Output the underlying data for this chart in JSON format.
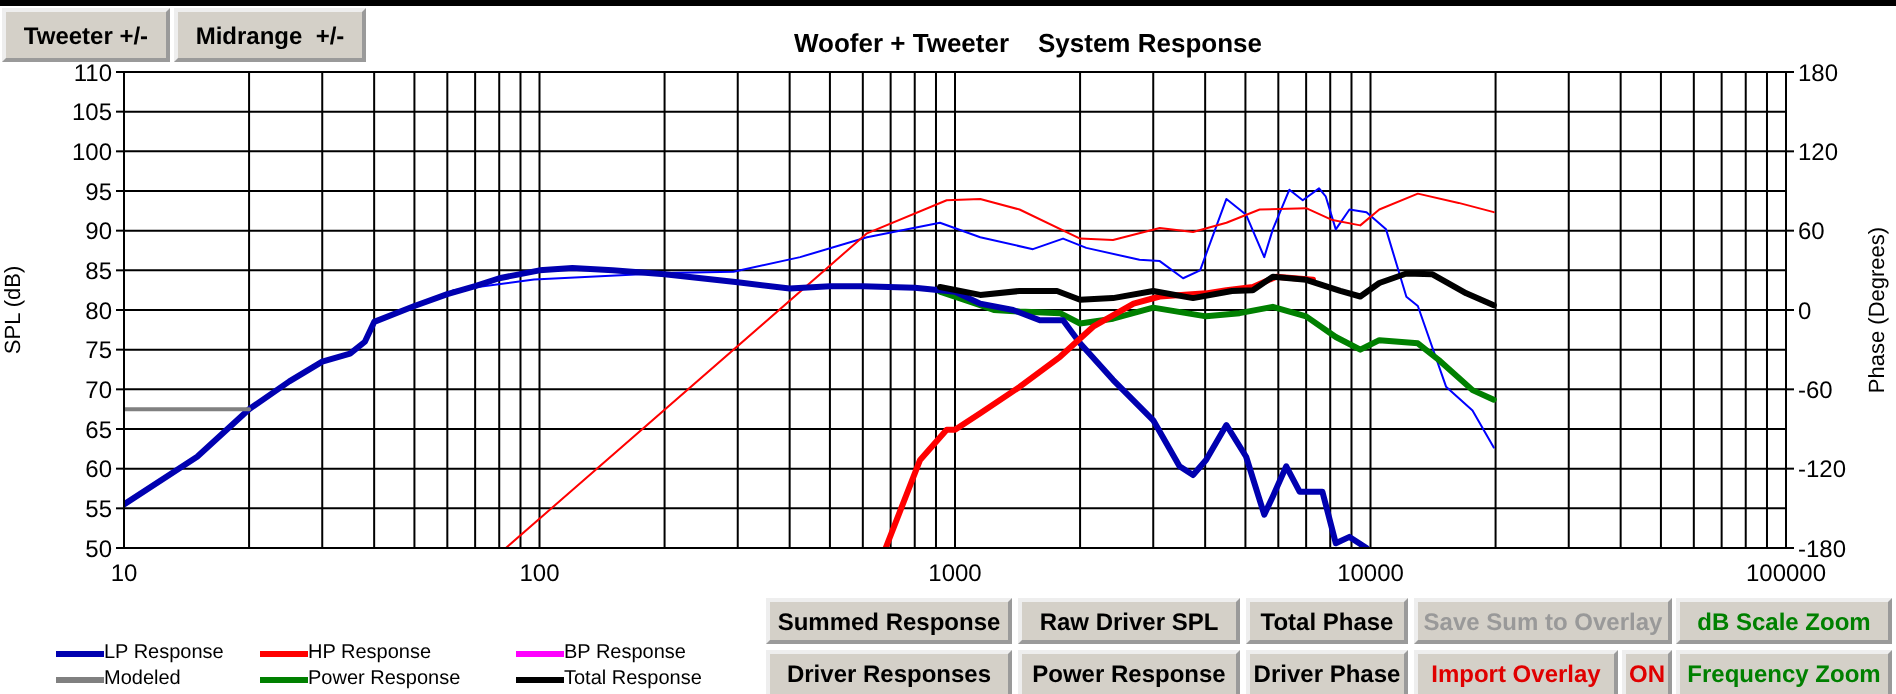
{
  "chart_data": {
    "type": "line",
    "title": "Woofer + Tweeter    System Response",
    "xlabel": null,
    "ylabel": "SPL (dB)",
    "y2label": "Phase (Degrees)",
    "log": "x",
    "grid": true,
    "legend": "bottom left",
    "marker": "none",
    "line_style": "solid",
    "xlim": [
      10,
      100000
    ],
    "xticks": [
      10,
      {
        "value": 20,
        "label": null
      },
      {
        "value": 30,
        "label": null
      },
      {
        "value": 40,
        "label": null
      },
      {
        "value": 50,
        "label": null
      },
      {
        "value": 60,
        "label": null
      },
      {
        "value": 70,
        "label": null
      },
      {
        "value": 80,
        "label": null
      },
      {
        "value": 90,
        "label": null
      },
      100,
      {
        "value": 200,
        "label": null
      },
      {
        "value": 300,
        "label": null
      },
      {
        "value": 400,
        "label": null
      },
      {
        "value": 500,
        "label": null
      },
      {
        "value": 600,
        "label": null
      },
      {
        "value": 700,
        "label": null
      },
      {
        "value": 800,
        "label": null
      },
      {
        "value": 900,
        "label": null
      },
      1000,
      {
        "value": 2000,
        "label": null
      },
      {
        "value": 3000,
        "label": null
      },
      {
        "value": 4000,
        "label": null
      },
      {
        "value": 5000,
        "label": null
      },
      {
        "value": 6000,
        "label": null
      },
      {
        "value": 7000,
        "label": null
      },
      {
        "value": 8000,
        "label": null
      },
      {
        "value": 9000,
        "label": null
      },
      10000,
      {
        "value": 20000,
        "label": null
      },
      {
        "value": 30000,
        "label": null
      },
      {
        "value": 40000,
        "label": null
      },
      {
        "value": 50000,
        "label": null
      },
      {
        "value": 60000,
        "label": null
      },
      {
        "value": 70000,
        "label": null
      },
      {
        "value": 80000,
        "label": null
      },
      {
        "value": 90000,
        "label": null
      },
      100000
    ],
    "ylim": [
      50,
      110
    ],
    "yticks": [
      50,
      55,
      60,
      65,
      70,
      75,
      80,
      85,
      90,
      95,
      100,
      105,
      110
    ],
    "y2lim": [
      -180,
      180
    ],
    "y2ticks": [
      -180,
      -120,
      -60,
      0,
      60,
      120,
      180
    ],
    "annotations": [
      "Tweeter +/-",
      "Midrange  +/-",
      "Summed Response",
      "Raw Driver SPL",
      "Total Phase",
      "Save Sum to Overlay",
      "dB Scale Zoom",
      "Driver Responses",
      "Power Response",
      "Driver Phase",
      "Import Overlay",
      "ON",
      "Frequency Zoom"
    ],
    "series": [
      {
        "name": "LP Response",
        "color": "#0000b0",
        "x": [
          10,
          15,
          20,
          25,
          30,
          35,
          38,
          40,
          50,
          60,
          70,
          80,
          100,
          120,
          150,
          200,
          300,
          400,
          500,
          600,
          800,
          1000,
          1150,
          1380,
          1600,
          1820,
          2000,
          2400,
          3000,
          3470,
          3740,
          4020,
          4500,
          5020,
          5550,
          5820,
          6270,
          6750,
          7660,
          8250,
          8900,
          9780
        ],
        "values": [
          55.5,
          61.5,
          67.5,
          71,
          73.5,
          74.5,
          76,
          78.5,
          80.5,
          82,
          83,
          84,
          85,
          85.3,
          85,
          84.5,
          83.5,
          82.7,
          83,
          83,
          82.8,
          82.3,
          80.8,
          80,
          78.7,
          78.7,
          75.8,
          71.2,
          66.1,
          60.3,
          59.2,
          61.1,
          65.5,
          61.5,
          54.2,
          56.5,
          60.3,
          57.1,
          57.1,
          50.6,
          51.4,
          50
        ]
      },
      {
        "name": "HP Response",
        "color": "#ff0000",
        "x": [
          681,
          824,
          955,
          1000,
          1150,
          1430,
          1790,
          2150,
          2690,
          3110,
          4020,
          4500,
          5210,
          5930,
          7270
        ],
        "values": [
          50,
          61.1,
          64.9,
          64.9,
          67,
          70.3,
          74.1,
          77.9,
          80.8,
          81.7,
          82.1,
          82.5,
          82.9,
          84.2,
          83.8
        ]
      },
      {
        "name": "BP Response",
        "color": "#ff00ff"
      },
      {
        "name": "Modeled",
        "color": "#808080",
        "x": [
          10,
          20
        ],
        "values": [
          67.5,
          67.5
        ]
      },
      {
        "name": "Power Response",
        "color": "#008000",
        "x": [
          920,
          1150,
          1240,
          1430,
          1790,
          2000,
          2400,
          3000,
          4020,
          4840,
          5820,
          7000,
          8250,
          9450,
          10500,
          13000,
          14600,
          17600,
          19800
        ],
        "values": [
          82.3,
          80.6,
          80,
          79.8,
          79.6,
          78.3,
          78.9,
          80.3,
          79.2,
          79.6,
          80.4,
          79.2,
          76.6,
          75,
          76.2,
          75.8,
          73.7,
          69.9,
          68.7
        ]
      },
      {
        "name": "Total Response",
        "color": "#000000",
        "x": [
          920,
          1150,
          1430,
          1760,
          2000,
          2400,
          3000,
          3740,
          4640,
          5210,
          5820,
          7000,
          8460,
          9450,
          10500,
          12200,
          14100,
          17000,
          19800
        ],
        "values": [
          82.9,
          81.9,
          82.4,
          82.4,
          81.3,
          81.5,
          82.4,
          81.5,
          82.4,
          82.5,
          84.2,
          83.8,
          82.4,
          81.7,
          83.4,
          84.6,
          84.5,
          82.1,
          80.6
        ]
      },
      {
        "color": "#0000ff",
        "axis": "y2",
        "x": [
          62,
          97,
          202,
          293,
          424,
          614,
          920,
          1150,
          1540,
          1820,
          2070,
          2780,
          3110,
          3540,
          3890,
          4500,
          5020,
          5550,
          5820,
          6380,
          6870,
          7520,
          7800,
          8250,
          8900,
          9780,
          10900,
          12200,
          13000,
          15200,
          17600,
          19800
        ],
        "values": [
          15,
          23,
          28,
          29,
          40,
          55,
          66,
          55,
          46,
          54,
          47,
          38,
          37,
          24,
          30,
          84,
          72,
          40,
          61,
          91,
          83,
          92,
          86,
          61,
          76,
          74,
          61,
          10,
          3,
          -58,
          -76,
          -104
        ]
      },
      {
        "color": "#ff0000",
        "axis": "y2",
        "x": [
          83,
          614,
          955,
          1150,
          1430,
          2000,
          2400,
          3110,
          3740,
          4500,
          5410,
          7000,
          8100,
          9450,
          10500,
          13000,
          16300,
          19800
        ],
        "values": [
          -180,
          58,
          83,
          84,
          76,
          54,
          53,
          62,
          59,
          66,
          76,
          77,
          68,
          64,
          76,
          88,
          81,
          74
        ]
      }
    ]
  }
}
